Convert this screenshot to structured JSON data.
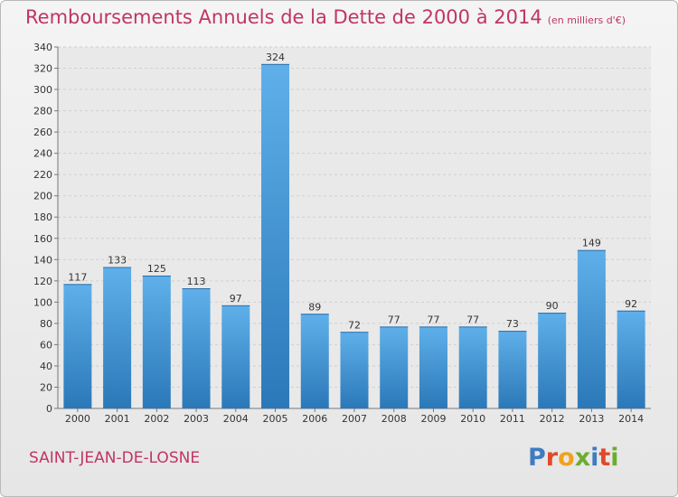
{
  "title": "Remboursements Annuels de la Dette de 2000 à 2014",
  "subtitle": "(en milliers d'€)",
  "place": "SAINT-JEAN-DE-LOSNE",
  "logo": {
    "text": "Proxiti",
    "letters": [
      "P",
      "r",
      "o",
      "x",
      "i",
      "t",
      "i"
    ]
  },
  "colors": {
    "title": "#c03565",
    "bar_top": "#5fb0ea",
    "bar_bottom": "#2b78b8",
    "grid": "#cfcfcf"
  },
  "chart_data": {
    "type": "bar",
    "categories": [
      "2000",
      "2001",
      "2002",
      "2003",
      "2004",
      "2005",
      "2006",
      "2007",
      "2008",
      "2009",
      "2010",
      "2011",
      "2012",
      "2013",
      "2014"
    ],
    "values": [
      117,
      133,
      125,
      113,
      97,
      324,
      89,
      72,
      77,
      77,
      77,
      73,
      90,
      149,
      92
    ],
    "ylim": [
      0,
      340
    ],
    "yticks": [
      0,
      20,
      40,
      60,
      80,
      100,
      120,
      140,
      160,
      180,
      200,
      220,
      240,
      260,
      280,
      300,
      320,
      340
    ],
    "grid": "horizontal dashed",
    "data_labels": true
  }
}
